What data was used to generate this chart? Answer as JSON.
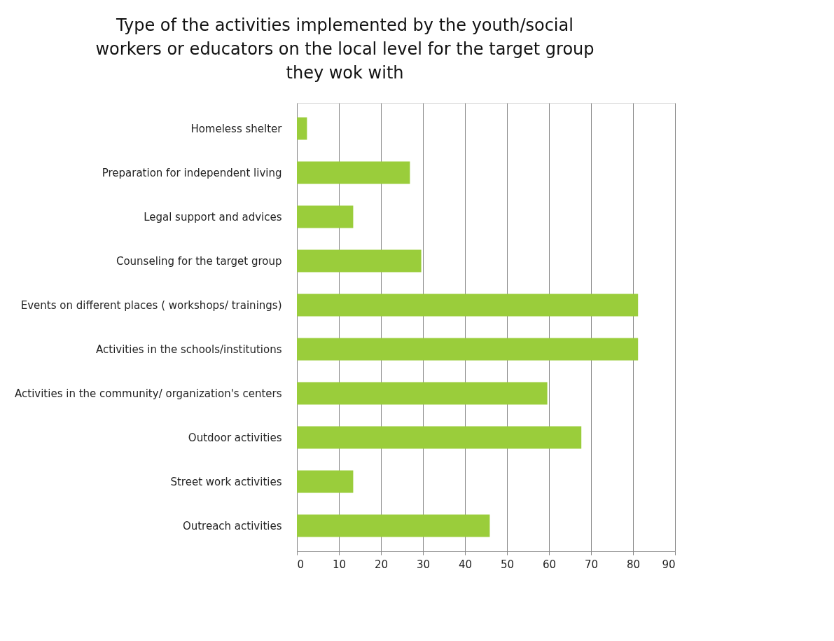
{
  "chart_data": {
    "type": "bar",
    "orientation": "horizontal",
    "title": "Type of the activities implemented by the youth/social workers or educators on the local level for the target group they wok with",
    "categories": [
      "Homeless shelter",
      "Preparation for independent living",
      "Legal support and advices",
      "Counseling for the target group",
      "Events on different places ( workshops/ trainings)",
      "Activities in the schools/institutions",
      "Activities in the community/ organization's centers",
      "Outdoor activities",
      "Street work activities",
      "Outreach activities"
    ],
    "values": [
      2.4,
      26.9,
      13.4,
      29.6,
      81.2,
      81.2,
      59.6,
      67.7,
      13.4,
      45.9
    ],
    "color": "#9acd3b",
    "xlim": [
      0,
      90
    ],
    "xticks": [
      0,
      10,
      20,
      30,
      40,
      50,
      60,
      70,
      80,
      90
    ],
    "grid": "x"
  }
}
